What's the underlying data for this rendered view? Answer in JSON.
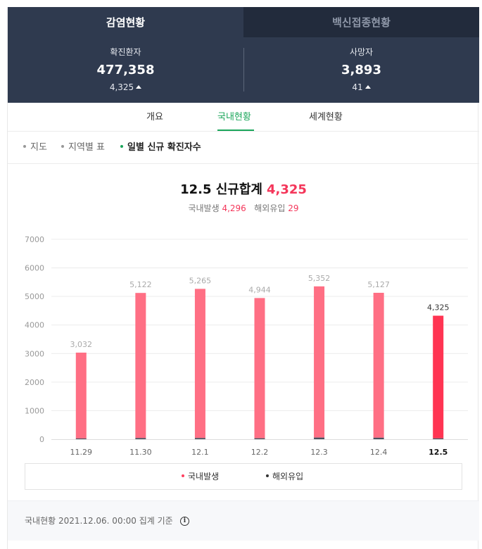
{
  "header": {
    "tabs": [
      {
        "label": "감염현황",
        "active": true
      },
      {
        "label": "백신접종현황",
        "active": false
      }
    ],
    "stats": {
      "confirmed": {
        "label": "확진환자",
        "value": "477,358",
        "delta": "4,325",
        "delta_icon": "up-triangle-icon"
      },
      "deaths": {
        "label": "사망자",
        "value": "3,893",
        "delta": "41",
        "delta_icon": "up-triangle-icon"
      }
    }
  },
  "subtabs": [
    {
      "label": "개요",
      "active": false
    },
    {
      "label": "국내현황",
      "active": true
    },
    {
      "label": "세계현황",
      "active": false
    }
  ],
  "filters": [
    {
      "label": "지도",
      "active": false
    },
    {
      "label": "지역별 표",
      "active": false
    },
    {
      "label": "일별 신규 확진자수",
      "active": true
    }
  ],
  "summary": {
    "title": "12.5 신규합계",
    "total": "4,325",
    "domestic_label": "국내발생",
    "domestic_value": "4,296",
    "overseas_label": "해외유입",
    "overseas_value": "29"
  },
  "chart_data": {
    "type": "bar",
    "stacked": true,
    "categories": [
      "11.29",
      "11.30",
      "12.1",
      "12.2",
      "12.3",
      "12.4",
      "12.5"
    ],
    "totals": [
      3032,
      5122,
      5265,
      4944,
      5352,
      5127,
      4325
    ],
    "total_labels": [
      "3,032",
      "5,122",
      "5,265",
      "4,944",
      "5,352",
      "5,127",
      "4,325"
    ],
    "series": [
      {
        "name": "국내발생",
        "values": [
          3006,
          5081,
          5223,
          4911,
          5295,
          5075,
          4296
        ]
      },
      {
        "name": "해외유입",
        "values": [
          26,
          41,
          42,
          33,
          57,
          52,
          29
        ]
      }
    ],
    "ylim": [
      0,
      7000
    ],
    "yticks": [
      0,
      1000,
      2000,
      3000,
      4000,
      5000,
      6000,
      7000
    ],
    "highlight_index": 6,
    "grid": true,
    "colors": {
      "domestic": "#ff6f84",
      "domestic_highlight": "#ff3452",
      "overseas": "#4a5160",
      "grid": "#ececec",
      "tick_text": "#999999",
      "value_text": "#aaaaaa"
    },
    "legend_position": "bottom"
  },
  "legend": [
    {
      "label": "국내발생",
      "color": "#ff3f5f"
    },
    {
      "label": "해외유입",
      "color": "#333333"
    }
  ],
  "footer": {
    "text": "국내현황 2021.12.06. 00:00 집계 기준",
    "info_icon": "info-icon",
    "info_glyph": "i"
  }
}
